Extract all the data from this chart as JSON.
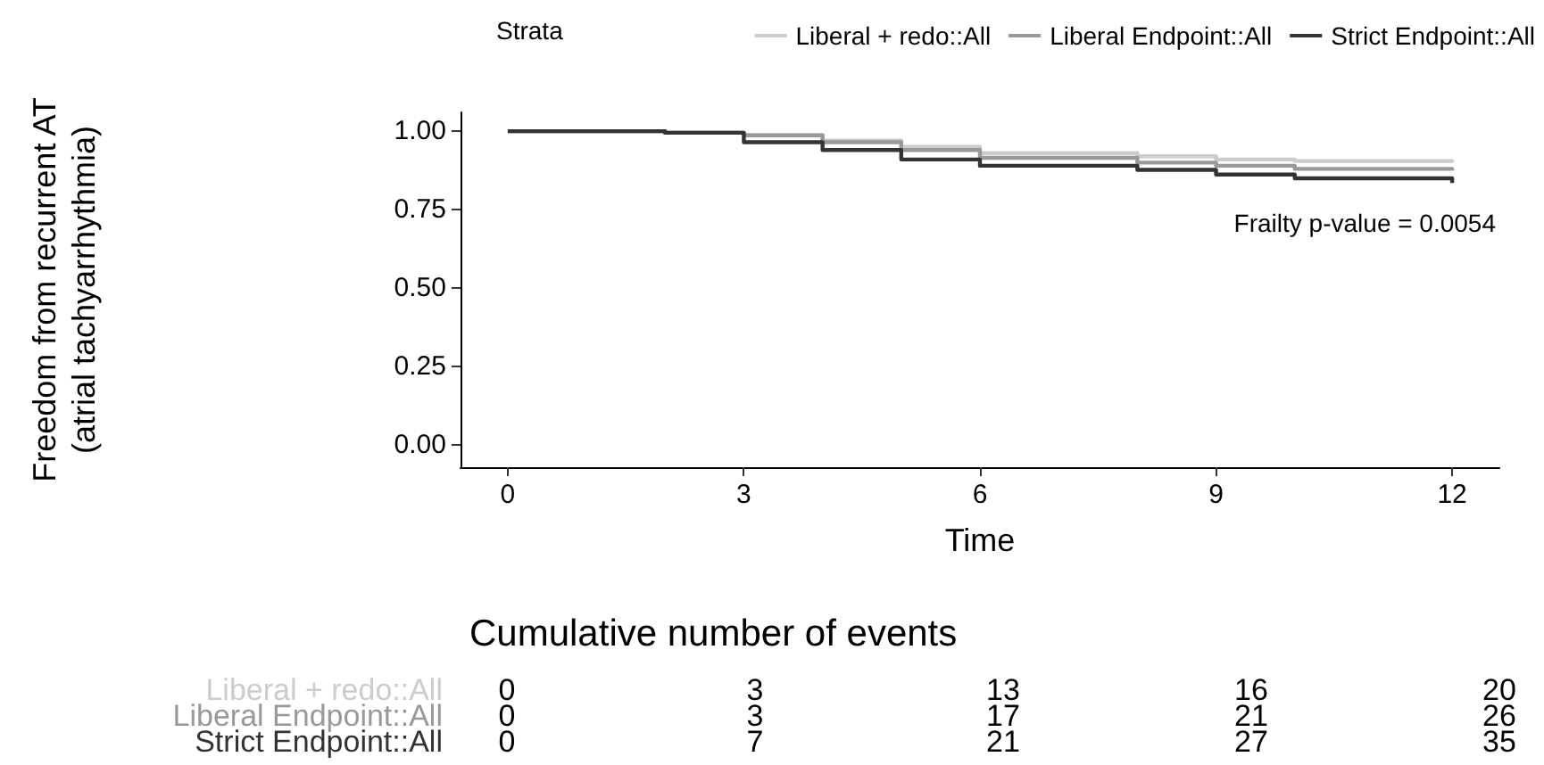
{
  "chart_data": [
    {
      "type": "step",
      "xlabel": "Time",
      "ylabel": "Freedom from recurrent AT\n(atrial tachyarrhythmia)",
      "legend_title": "Strata",
      "legend": "top right",
      "grid": false,
      "marker": "none",
      "line_style": "solid",
      "x": [
        0,
        2,
        3,
        4,
        5,
        6,
        8,
        9,
        10,
        12
      ],
      "xlim": [
        -0.6,
        12.6
      ],
      "xticks": [
        0,
        3,
        6,
        9,
        12
      ],
      "ylim": [
        -0.07,
        1.06
      ],
      "yticks": [
        {
          "value": 0,
          "label": "0.00"
        },
        {
          "value": 0.25,
          "label": "0.25"
        },
        {
          "value": 0.5,
          "label": "0.50"
        },
        {
          "value": 0.75,
          "label": "0.75"
        },
        {
          "value": 1,
          "label": "1.00"
        }
      ],
      "series": [
        {
          "name": "Liberal + redo::All",
          "color": "#cccccc",
          "values": [
            1,
            0.995,
            0.987,
            0.97,
            0.95,
            0.93,
            0.92,
            0.91,
            0.905,
            0.9
          ]
        },
        {
          "name": "Liberal Endpoint::All",
          "color": "#999999",
          "values": [
            1,
            0.995,
            0.987,
            0.965,
            0.94,
            0.915,
            0.9,
            0.89,
            0.88,
            0.875
          ]
        },
        {
          "name": "Strict Endpoint::All",
          "color": "#333333",
          "values": [
            1,
            0.995,
            0.965,
            0.94,
            0.91,
            0.89,
            0.877,
            0.862,
            0.85,
            0.835
          ]
        }
      ],
      "annotations": [
        "Frailty p-value = 0.0054"
      ]
    },
    {
      "type": "other",
      "title": "Cumulative number of events",
      "annotations": [
        "Liberal + redo::All",
        "0",
        "3",
        "13",
        "16",
        "20",
        "Liberal Endpoint::All",
        "0",
        "3",
        "17",
        "21",
        "26",
        "Strict Endpoint::All",
        "0",
        "7",
        "21",
        "27",
        "35"
      ]
    }
  ]
}
